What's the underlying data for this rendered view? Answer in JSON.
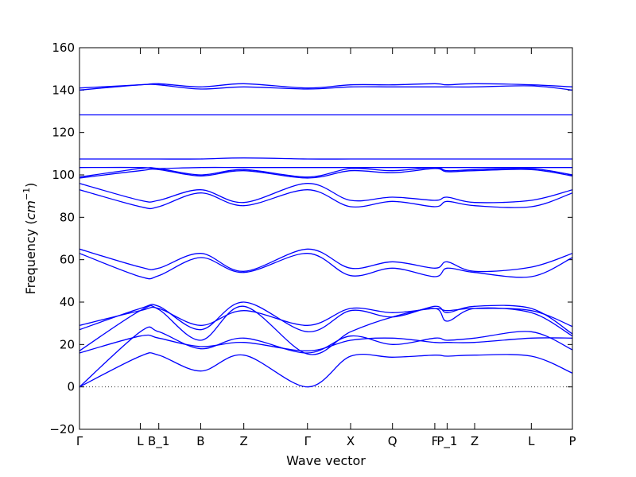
{
  "chart_data": {
    "type": "line",
    "title": "",
    "xlabel": "Wave vector",
    "ylabel": "Frequency (",
    "ylabel_unit_base": "cm",
    "ylabel_unit_exp": "−1",
    "ylabel_close": ")",
    "ylim": [
      -20,
      160
    ],
    "yticks": [
      -20,
      0,
      20,
      40,
      60,
      80,
      100,
      120,
      140,
      160
    ],
    "xlim": [
      0,
      12
    ],
    "high_symmetry_points": [
      {
        "label": "Γ",
        "x": 0
      },
      {
        "label": "L",
        "x": 1.48
      },
      {
        "label": "B_1",
        "x": 1.93
      },
      {
        "label": "B",
        "x": 2.95
      },
      {
        "label": "Z",
        "x": 4.0
      },
      {
        "label": "Γ",
        "x": 5.55
      },
      {
        "label": "X",
        "x": 6.6
      },
      {
        "label": "Q",
        "x": 7.62
      },
      {
        "label": "F",
        "x": 8.65
      },
      {
        "label": "P_1",
        "x": 8.95
      },
      {
        "label": "Z",
        "x": 9.62
      },
      {
        "label": "L",
        "x": 11.0
      },
      {
        "label": "P",
        "x": 12.0
      }
    ],
    "zero_line": {
      "y": 0,
      "style": "dotted"
    },
    "line_color": "#0000ff",
    "series": [
      {
        "x": [
          0,
          1.48,
          1.93,
          2.95,
          4.0,
          5.55,
          6.6,
          7.62,
          8.65,
          8.95,
          9.62,
          11.0,
          12.0
        ],
        "y": [
          0,
          14.5,
          15,
          7.5,
          15,
          0,
          14.5,
          14,
          15,
          14.5,
          15,
          14.5,
          6.5
        ]
      },
      {
        "x": [
          0,
          1.48,
          1.93,
          2.95,
          4.0,
          5.55,
          6.6,
          7.62,
          8.65,
          8.95,
          9.62,
          11.0,
          12.0
        ],
        "y": [
          0,
          26,
          26,
          18,
          23,
          16,
          24,
          20,
          23,
          22,
          23,
          26,
          17.5
        ]
      },
      {
        "x": [
          0,
          1.48,
          1.93,
          2.95,
          4.0,
          5.55,
          6.6,
          7.62,
          8.65,
          8.95,
          9.62,
          11.0,
          12.0
        ],
        "y": [
          16,
          24,
          23,
          19,
          21,
          17,
          22,
          23,
          21,
          21,
          21,
          23,
          23
        ]
      },
      {
        "x": [
          0,
          1.48,
          1.93,
          2.95,
          4.0,
          5.55,
          6.6,
          7.62,
          8.65,
          8.95,
          9.62,
          11.0,
          12.0
        ],
        "y": [
          17,
          36,
          36.5,
          22,
          38,
          15.5,
          26,
          33,
          37,
          31,
          37,
          35,
          24
        ]
      },
      {
        "x": [
          0,
          1.48,
          1.93,
          2.95,
          4.0,
          5.55,
          6.6,
          7.62,
          8.65,
          8.95,
          9.62,
          11.0,
          12.0
        ],
        "y": [
          27,
          37,
          38,
          27,
          40,
          26,
          36,
          33,
          38,
          35,
          38,
          37,
          25
        ]
      },
      {
        "x": [
          0,
          1.48,
          1.93,
          2.95,
          4.0,
          5.55,
          6.6,
          7.62,
          8.65,
          8.95,
          9.62,
          11.0,
          12.0
        ],
        "y": [
          29,
          36,
          37,
          29,
          36,
          29,
          37,
          35,
          37,
          36,
          37,
          36,
          28.5
        ]
      },
      {
        "x": [
          0,
          1.48,
          1.93,
          2.95,
          4.0,
          5.55,
          6.6,
          7.62,
          8.65,
          8.95,
          9.62,
          11.0,
          12.0
        ],
        "y": [
          63,
          52,
          52.5,
          61,
          54,
          63,
          52.5,
          56,
          52,
          56,
          54,
          52,
          61
        ]
      },
      {
        "x": [
          0,
          1.48,
          1.93,
          2.95,
          4.0,
          5.55,
          6.6,
          7.62,
          8.65,
          8.95,
          9.62,
          11.0,
          12.0
        ],
        "y": [
          65,
          56.5,
          56,
          63,
          54.5,
          65,
          56,
          59,
          56,
          59,
          54.5,
          56.5,
          63
        ]
      },
      {
        "x": [
          0,
          1.48,
          1.93,
          2.95,
          4.0,
          5.55,
          6.6,
          7.62,
          8.65,
          8.95,
          9.62,
          11.0,
          12.0
        ],
        "y": [
          93,
          85,
          85,
          91.5,
          85.5,
          93,
          85,
          87.5,
          85,
          87.5,
          85.5,
          85,
          91.5
        ]
      },
      {
        "x": [
          0,
          1.48,
          1.93,
          2.95,
          4.0,
          5.55,
          6.6,
          7.62,
          8.65,
          8.95,
          9.62,
          11.0,
          12.0
        ],
        "y": [
          96,
          88,
          88,
          93,
          87,
          96,
          88,
          89.5,
          88,
          89.5,
          87,
          88,
          93
        ]
      },
      {
        "x": [
          0,
          1.48,
          1.93,
          2.95,
          4.0,
          5.55,
          6.6,
          7.62,
          8.65,
          8.95,
          9.62,
          11.0,
          12.0
        ],
        "y": [
          98.5,
          102,
          102.5,
          99.5,
          102,
          98.5,
          102,
          101,
          103,
          101.5,
          102,
          102.5,
          99.5
        ]
      },
      {
        "x": [
          0,
          1.48,
          1.93,
          2.95,
          4.0,
          5.55,
          6.6,
          7.62,
          8.65,
          8.95,
          9.62,
          11.0,
          12.0
        ],
        "y": [
          99,
          103,
          103,
          100,
          102.5,
          99,
          103,
          102,
          103.5,
          102,
          102.5,
          103,
          100
        ]
      },
      {
        "x": [
          0,
          1.48,
          1.93,
          2.95,
          4.0,
          5.55,
          6.6,
          7.62,
          8.65,
          8.95,
          9.62,
          11.0,
          12.0
        ],
        "y": [
          103.5,
          103.5,
          103,
          103.5,
          103.5,
          103.5,
          103.5,
          103.5,
          103.5,
          103.5,
          103.5,
          103.5,
          103.5
        ]
      },
      {
        "x": [
          0,
          1.48,
          1.93,
          2.95,
          4.0,
          5.55,
          6.6,
          7.62,
          8.65,
          8.95,
          9.62,
          11.0,
          12.0
        ],
        "y": [
          107.5,
          107.5,
          107.5,
          107.5,
          108,
          107.5,
          107.5,
          107.5,
          107.5,
          107.5,
          107.5,
          107.5,
          107.5
        ]
      },
      {
        "x": [
          0,
          1.48,
          1.93,
          2.95,
          4.0,
          5.55,
          6.6,
          7.62,
          8.65,
          8.95,
          9.62,
          11.0,
          12.0
        ],
        "y": [
          128.3,
          128.3,
          128.3,
          128.3,
          128.3,
          128.3,
          128.3,
          128.3,
          128.3,
          128.3,
          128.3,
          128.3,
          128.3
        ]
      },
      {
        "x": [
          0,
          1.48,
          1.93,
          2.95,
          4.0,
          5.55,
          6.6,
          7.62,
          8.65,
          8.95,
          9.62,
          11.0,
          12.0
        ],
        "y": [
          140,
          142.5,
          142.5,
          140.5,
          141.5,
          140.5,
          141.5,
          141.5,
          141.5,
          141.5,
          141.5,
          142,
          140
        ]
      },
      {
        "x": [
          0,
          1.48,
          1.93,
          2.95,
          4.0,
          5.55,
          6.6,
          7.62,
          8.65,
          8.95,
          9.62,
          11.0,
          12.0
        ],
        "y": [
          141,
          142.5,
          143,
          141.5,
          143,
          141,
          142.5,
          142.5,
          143,
          142.5,
          143,
          142.5,
          141.5
        ]
      }
    ]
  }
}
